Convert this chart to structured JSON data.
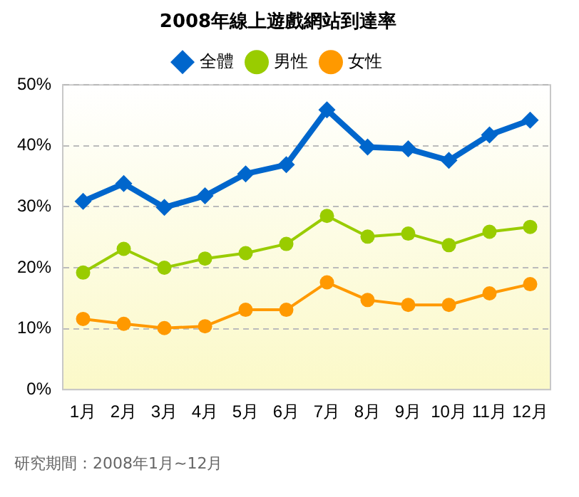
{
  "chart_data": {
    "type": "line",
    "title": "2008年線上遊戲網站到達率",
    "categories": [
      "1月",
      "2月",
      "3月",
      "4月",
      "5月",
      "6月",
      "7月",
      "8月",
      "9月",
      "10月",
      "11月",
      "12月"
    ],
    "series": [
      {
        "name": "全體",
        "color": "#0066cc",
        "marker": "diamond",
        "values": [
          30.9,
          33.8,
          29.9,
          31.8,
          35.4,
          36.9,
          45.9,
          39.8,
          39.5,
          37.6,
          41.8,
          44.2
        ]
      },
      {
        "name": "男性",
        "color": "#99cc00",
        "marker": "circle",
        "values": [
          19.2,
          23.1,
          20.0,
          21.5,
          22.4,
          23.9,
          28.5,
          25.1,
          25.6,
          23.7,
          25.9,
          26.7
        ]
      },
      {
        "name": "女性",
        "color": "#ff9900",
        "marker": "circle",
        "values": [
          11.6,
          10.8,
          10.1,
          10.4,
          13.1,
          13.1,
          17.6,
          14.7,
          13.9,
          13.9,
          15.8,
          17.3
        ]
      }
    ],
    "ylim": [
      0,
      50
    ],
    "yticks": [
      {
        "value": 0,
        "label": "0%"
      },
      {
        "value": 10,
        "label": "10%"
      },
      {
        "value": 20,
        "label": "20%"
      },
      {
        "value": 30,
        "label": "30%"
      },
      {
        "value": 40,
        "label": "40%"
      },
      {
        "value": 50,
        "label": "50%"
      }
    ],
    "grid": "y",
    "legend": "top",
    "line_style": "solid",
    "annotations": [
      "研究期間：2008年1月~12月"
    ]
  }
}
